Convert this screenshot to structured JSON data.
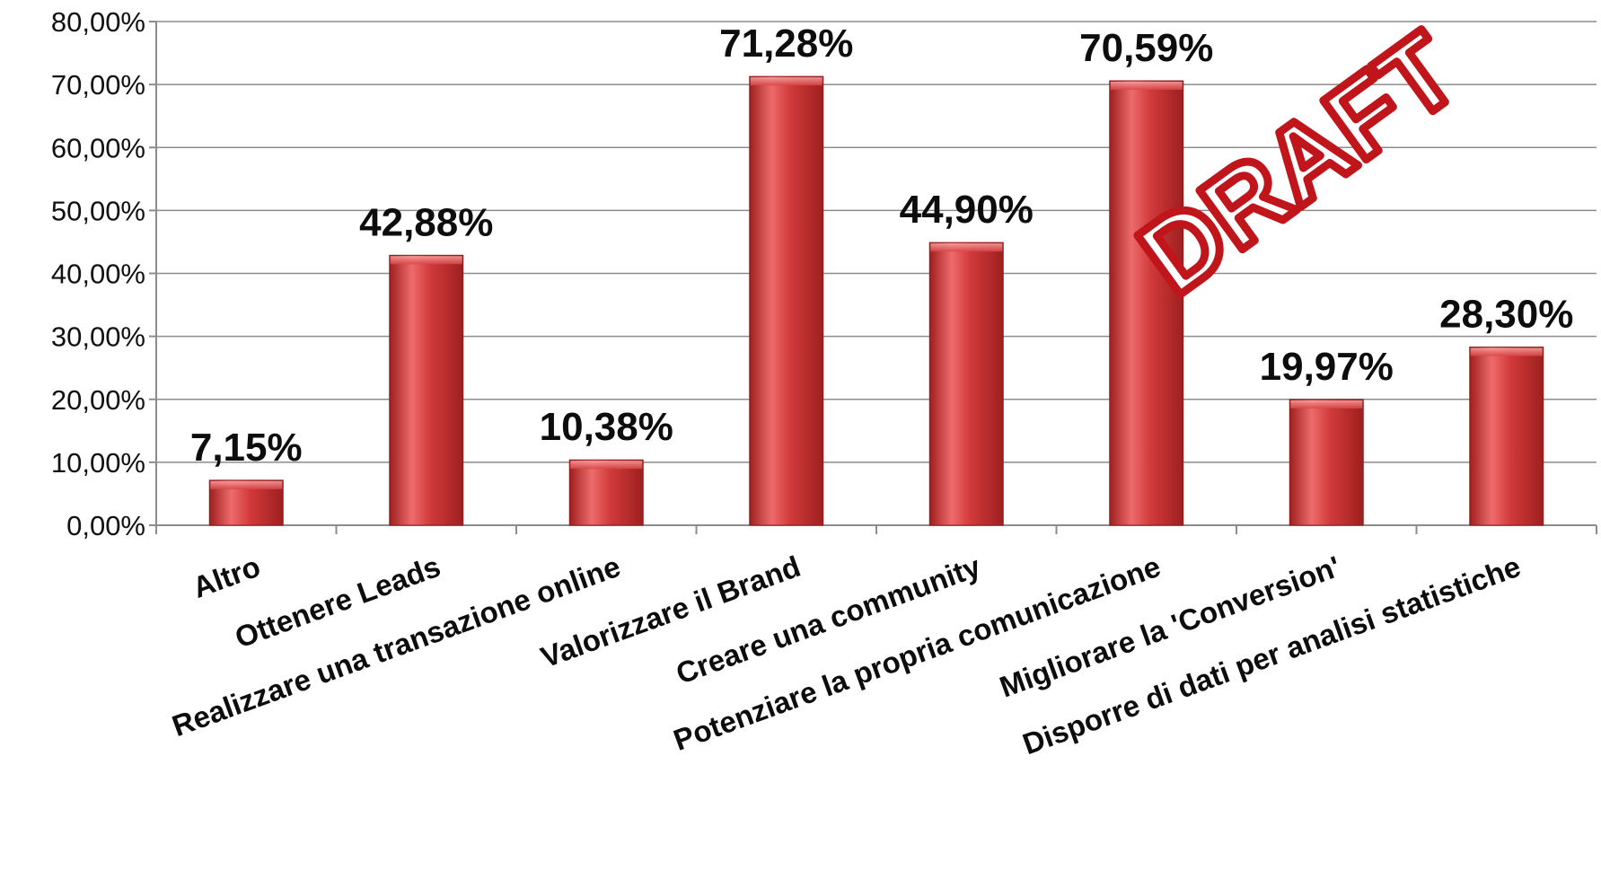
{
  "chart_data": {
    "type": "bar",
    "title": "",
    "xlabel": "",
    "ylabel": "",
    "categories": [
      "Altro",
      "Ottenere Leads",
      "Realizzare una transazione online",
      "Valorizzare il Brand",
      "Creare una community",
      "Potenziare la propria comunicazione",
      "Migliorare la 'Conversion'",
      "Disporre di dati per analisi statistiche"
    ],
    "values": [
      7.15,
      42.88,
      10.38,
      71.28,
      44.9,
      70.59,
      19.97,
      28.3
    ],
    "value_labels": [
      "7,15%",
      "42,88%",
      "10,38%",
      "71,28%",
      "44,90%",
      "70,59%",
      "19,97%",
      "28,30%"
    ],
    "ylim": [
      0,
      80
    ],
    "y_ticks": [
      0,
      10,
      20,
      30,
      40,
      50,
      60,
      70,
      80
    ],
    "y_tick_labels": [
      "0,00%",
      "10,00%",
      "20,00%",
      "30,00%",
      "40,00%",
      "50,00%",
      "60,00%",
      "70,00%",
      "80,00%"
    ],
    "grid": true,
    "legend": "none",
    "bar_color": "#d23a3a",
    "bar_color_dark": "#9e1f1f",
    "bar_color_light": "#ee6b6b",
    "watermark": {
      "text": "DRAFT",
      "color": "#c0161b"
    }
  }
}
